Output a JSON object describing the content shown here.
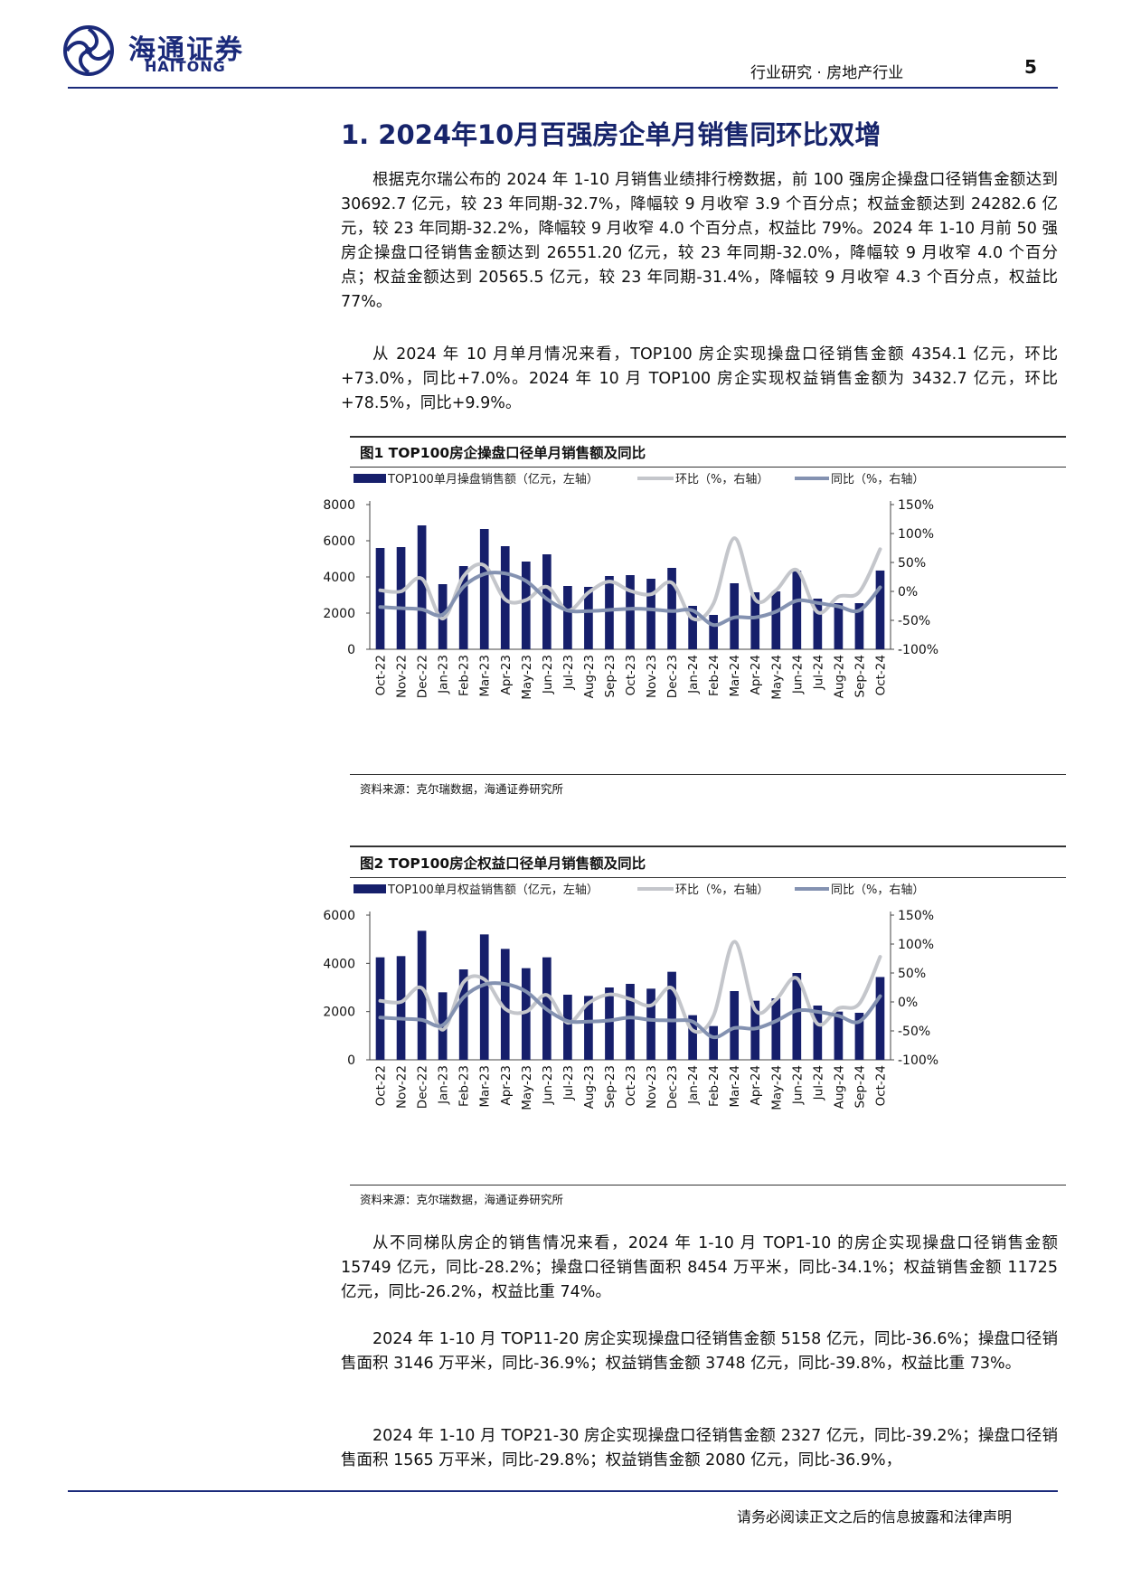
{
  "header": {
    "brand_cn": "海通证券",
    "brand_en": "HAITONG",
    "category": "行业研究 · 房地产行业",
    "page_number": "5"
  },
  "section": {
    "title": "1. 2024年10月百强房企单月销售同环比双增",
    "paragraphs_top": [
      "根据克尔瑞公布的 2024 年 1-10 月销售业绩排行榜数据，前 100 强房企操盘口径销售金额达到 30692.7 亿元，较 23 年同期-32.7%，降幅较 9 月收窄 3.9 个百分点；权益金额达到 24282.6 亿元，较 23 年同期-32.2%，降幅较 9 月收窄 4.0 个百分点，权益比 79%。2024 年 1-10 月前 50 强房企操盘口径销售金额达到 26551.20 亿元，较 23 年同期-32.0%，降幅较 9 月收窄 4.0 个百分点；权益金额达到 20565.5 亿元，较 23 年同期-31.4%，降幅较 9 月收窄 4.3 个百分点，权益比 77%。",
      "从 2024 年 10 月单月情况来看，TOP100 房企实现操盘口径销售金额 4354.1 亿元，环比+73.0%，同比+7.0%。2024 年 10 月 TOP100 房企实现权益销售金额为 3432.7 亿元，环比+78.5%，同比+9.9%。"
    ],
    "paragraphs_bottom": [
      "从不同梯队房企的销售情况来看，2024 年 1-10 月 TOP1-10 的房企实现操盘口径销售金额 15749 亿元，同比-28.2%；操盘口径销售面积 8454 万平米，同比-34.1%；权益销售金额 11725 亿元，同比-26.2%，权益比重 74%。",
      "2024 年 1-10 月 TOP11-20 房企实现操盘口径销售金额 5158 亿元，同比-36.6%；操盘口径销售面积 3146 万平米，同比-36.9%；权益销售金额 3748 亿元，同比-39.8%，权益比重 73%。",
      "2024 年 1-10 月 TOP21-30 房企实现操盘口径销售金额 2327 亿元，同比-39.2%；操盘口径销售面积 1565 万平米，同比-29.8%；权益销售金额 2080 亿元，同比-36.9%，"
    ]
  },
  "chart_data": [
    {
      "type": "bar",
      "title": "图1  TOP100房企操盘口径单月销售额及同比",
      "source": "资料来源：克尔瑞数据，海通证券研究所",
      "legend_placement": "top",
      "categories": [
        "Oct-22",
        "Nov-22",
        "Dec-22",
        "Jan-23",
        "Feb-23",
        "Mar-23",
        "Apr-23",
        "May-23",
        "Jun-23",
        "Jul-23",
        "Aug-23",
        "Sep-23",
        "Oct-23",
        "Nov-23",
        "Dec-23",
        "Jan-24",
        "Feb-24",
        "Mar-24",
        "Apr-24",
        "May-24",
        "Jun-24",
        "Jul-24",
        "Aug-24",
        "Sep-24",
        "Oct-24"
      ],
      "left_ticks": [
        "0",
        "2000",
        "4000",
        "6000",
        "8000"
      ],
      "right_ticks": [
        "-100%",
        "-50%",
        "0%",
        "50%",
        "100%",
        "150%"
      ],
      "ylim_left": [
        0,
        8000
      ],
      "ylim_right": [
        -100,
        150
      ],
      "series": [
        {
          "name": "TOP100单月操盘销售额（亿元，左轴）",
          "kind": "bar",
          "axis": "left",
          "color": "#161f6b",
          "values": [
            5600,
            5650,
            6850,
            3600,
            4600,
            6650,
            5700,
            4850,
            5250,
            3500,
            3450,
            4050,
            4100,
            3900,
            4500,
            2400,
            1900,
            3650,
            3150,
            3200,
            4350,
            2800,
            2550,
            2550,
            4354
          ]
        },
        {
          "name": "环比（%，右轴）",
          "kind": "line",
          "axis": "right",
          "color": "#c4c6cb",
          "values": [
            2,
            0,
            22,
            -47,
            26,
            45,
            -14,
            -15,
            8,
            -33,
            -2,
            17,
            1,
            -5,
            15,
            -47,
            -21,
            92,
            -14,
            2,
            37,
            -36,
            -9,
            -1,
            73
          ]
        },
        {
          "name": "同比（%，右轴）",
          "kind": "line",
          "axis": "right",
          "color": "#8492b1",
          "values": [
            -27,
            -29,
            -31,
            -40,
            8,
            30,
            31,
            18,
            -13,
            -33,
            -34,
            -32,
            -30,
            -31,
            -34,
            -33,
            -58,
            -45,
            -45,
            -35,
            -16,
            -20,
            -26,
            -33,
            7
          ]
        }
      ]
    },
    {
      "type": "bar",
      "title": "图2  TOP100房企权益口径单月销售额及同比",
      "source": "资料来源：克尔瑞数据，海通证券研究所",
      "legend_placement": "top",
      "categories": [
        "Oct-22",
        "Nov-22",
        "Dec-22",
        "Jan-23",
        "Feb-23",
        "Mar-23",
        "Apr-23",
        "May-23",
        "Jun-23",
        "Jul-23",
        "Aug-23",
        "Sep-23",
        "Oct-23",
        "Nov-23",
        "Dec-23",
        "Jan-24",
        "Feb-24",
        "Mar-24",
        "Apr-24",
        "May-24",
        "Jun-24",
        "Jul-24",
        "Aug-24",
        "Sep-24",
        "Oct-24"
      ],
      "left_ticks": [
        "0",
        "2000",
        "4000",
        "6000"
      ],
      "right_ticks": [
        "-100%",
        "-50%",
        "0%",
        "50%",
        "100%",
        "150%"
      ],
      "ylim_left": [
        0,
        6000
      ],
      "ylim_right": [
        -100,
        150
      ],
      "series": [
        {
          "name": "TOP100单月权益销售额（亿元，左轴）",
          "kind": "bar",
          "axis": "left",
          "color": "#161f6b",
          "values": [
            4250,
            4300,
            5350,
            2800,
            3750,
            5200,
            4600,
            3800,
            4250,
            2700,
            2650,
            3000,
            3150,
            2950,
            3650,
            1850,
            1400,
            2850,
            2450,
            2550,
            3600,
            2250,
            2000,
            1950,
            3433
          ]
        },
        {
          "name": "环比（%，右轴）",
          "kind": "line",
          "axis": "right",
          "color": "#c4c6cb",
          "values": [
            2,
            0,
            24,
            -48,
            34,
            39,
            -12,
            -17,
            12,
            -36,
            -2,
            13,
            5,
            -6,
            24,
            -49,
            -24,
            104,
            -14,
            4,
            41,
            -38,
            -11,
            -3,
            78
          ]
        },
        {
          "name": "同比（%，右轴）",
          "kind": "line",
          "axis": "right",
          "color": "#8492b1",
          "values": [
            -27,
            -29,
            -31,
            -40,
            8,
            30,
            31,
            18,
            -13,
            -33,
            -34,
            -32,
            -27,
            -31,
            -32,
            -34,
            -61,
            -45,
            -46,
            -33,
            -15,
            -17,
            -24,
            -34,
            10
          ]
        }
      ]
    }
  ],
  "footer": {
    "disclaimer": "请务必阅读正文之后的信息披露和法律声明"
  }
}
